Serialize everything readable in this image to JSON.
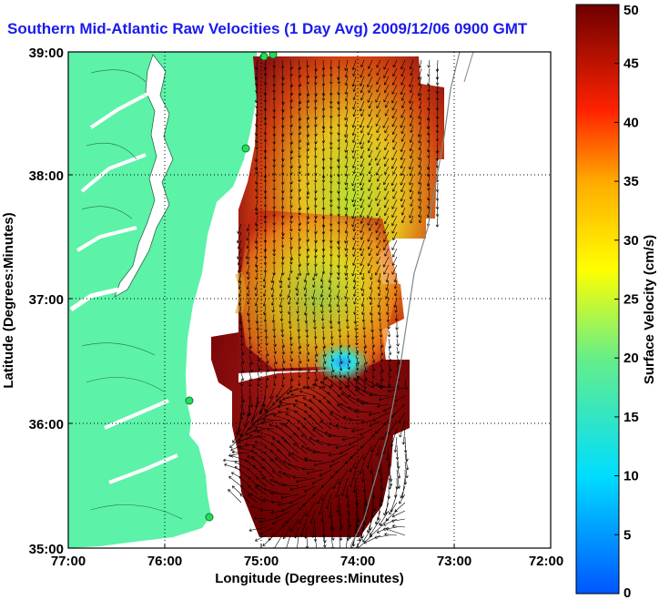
{
  "title": "Southern Mid-Atlantic Raw Velocities (1 Day Avg) 2009/12/06 0900 GMT",
  "x_axis": {
    "label": "Longitude (Degrees:Minutes)",
    "ticks": [
      "77:00",
      "76:00",
      "75:00",
      "74:00",
      "73:00",
      "72:00"
    ]
  },
  "y_axis": {
    "label": "Latitude (Degrees:Minutes)",
    "ticks": [
      "39:00",
      "38:00",
      "37:00",
      "36:00",
      "35:00"
    ]
  },
  "colorbar": {
    "label": "Surface Velocity (cm/s)",
    "ticks": [
      "50",
      "45",
      "40",
      "35",
      "30",
      "25",
      "20",
      "15",
      "10",
      "5",
      "0"
    ],
    "min": 0,
    "max": 50
  },
  "colors": {
    "land": "#5cf2a8",
    "title": "#1a1aee",
    "coast": "#7a8a8a"
  }
}
